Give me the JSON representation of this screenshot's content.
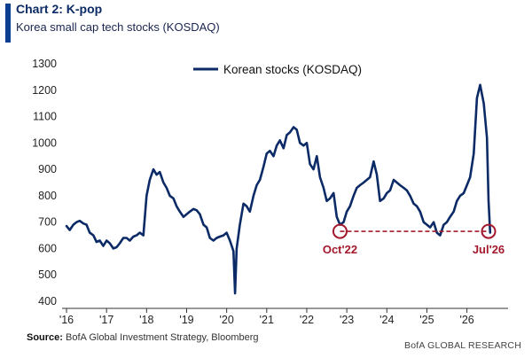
{
  "header": {
    "title": "Chart 2: K-pop",
    "subtitle": "Korea small cap tech stocks (KOSDAQ)"
  },
  "footer": {
    "source_label": "Source:",
    "source_text": "BofA Global Investment Strategy, Bloomberg",
    "brand": "BofA GLOBAL RESEARCH"
  },
  "colors": {
    "line": "#0b2a66",
    "annotation": "#a3182c",
    "accent": "#0b3d91"
  },
  "chart_data": {
    "type": "line",
    "title": "",
    "xlabel": "",
    "ylabel": "",
    "ylim": [
      400,
      1300
    ],
    "yticks": [
      400,
      500,
      600,
      700,
      800,
      900,
      1000,
      1100,
      1200,
      1300
    ],
    "xlim": [
      2016.0,
      2026.85
    ],
    "xticks": [
      2016,
      2017,
      2018,
      2019,
      2020,
      2021,
      2022,
      2023,
      2024,
      2025,
      2026
    ],
    "xtick_labels": [
      "'16",
      "'17",
      "'18",
      "'19",
      "'20",
      "'21",
      "'22",
      "'23",
      "'24",
      "'25",
      "'26"
    ],
    "grid": false,
    "legend": "top-center",
    "series": [
      {
        "name": "Korean stocks (KOSDAQ)",
        "x": [
          2016.0,
          2016.08,
          2016.17,
          2016.25,
          2016.33,
          2016.42,
          2016.5,
          2016.58,
          2016.67,
          2016.75,
          2016.83,
          2016.92,
          2017.0,
          2017.08,
          2017.17,
          2017.25,
          2017.33,
          2017.42,
          2017.5,
          2017.58,
          2017.67,
          2017.75,
          2017.83,
          2017.92,
          2018.0,
          2018.08,
          2018.17,
          2018.25,
          2018.33,
          2018.42,
          2018.5,
          2018.58,
          2018.67,
          2018.75,
          2018.83,
          2018.92,
          2019.0,
          2019.08,
          2019.17,
          2019.25,
          2019.33,
          2019.42,
          2019.5,
          2019.58,
          2019.67,
          2019.75,
          2019.83,
          2019.92,
          2020.0,
          2020.08,
          2020.17,
          2020.21,
          2020.25,
          2020.33,
          2020.42,
          2020.5,
          2020.58,
          2020.67,
          2020.75,
          2020.83,
          2020.92,
          2021.0,
          2021.08,
          2021.17,
          2021.25,
          2021.33,
          2021.42,
          2021.5,
          2021.58,
          2021.67,
          2021.75,
          2021.83,
          2021.92,
          2022.0,
          2022.08,
          2022.17,
          2022.25,
          2022.33,
          2022.42,
          2022.5,
          2022.58,
          2022.67,
          2022.75,
          2022.83,
          2022.92,
          2023.0,
          2023.08,
          2023.17,
          2023.25,
          2023.33,
          2023.42,
          2023.5,
          2023.58,
          2023.67,
          2023.75,
          2023.83,
          2023.92,
          2024.0,
          2024.08,
          2024.17,
          2024.25,
          2024.33,
          2024.42,
          2024.5,
          2024.58,
          2024.67,
          2024.75,
          2024.83,
          2024.92,
          2025.0,
          2025.08,
          2025.17,
          2025.25,
          2025.33,
          2025.42,
          2025.5,
          2025.58,
          2025.67,
          2025.75,
          2025.83,
          2025.92,
          2026.0,
          2026.08,
          2026.17,
          2026.25,
          2026.33,
          2026.42,
          2026.5,
          2026.54,
          2026.58
        ],
        "values": [
          685,
          670,
          690,
          700,
          705,
          695,
          690,
          660,
          650,
          625,
          630,
          610,
          630,
          620,
          600,
          605,
          620,
          640,
          640,
          630,
          645,
          650,
          660,
          650,
          800,
          860,
          900,
          880,
          890,
          850,
          830,
          800,
          790,
          760,
          740,
          720,
          730,
          740,
          750,
          745,
          730,
          690,
          680,
          640,
          630,
          640,
          645,
          650,
          660,
          630,
          590,
          430,
          600,
          690,
          770,
          760,
          740,
          800,
          840,
          860,
          910,
          960,
          970,
          950,
          990,
          1010,
          980,
          1030,
          1040,
          1060,
          1050,
          1000,
          990,
          1000,
          920,
          900,
          950,
          870,
          830,
          780,
          790,
          810,
          720,
          690,
          700,
          740,
          760,
          800,
          830,
          840,
          850,
          860,
          870,
          930,
          880,
          780,
          790,
          810,
          820,
          860,
          850,
          840,
          830,
          820,
          800,
          770,
          760,
          740,
          700,
          690,
          680,
          700,
          660,
          650,
          690,
          700,
          720,
          740,
          780,
          800,
          810,
          840,
          870,
          960,
          1170,
          1220,
          1150,
          1020,
          780,
          660
        ]
      }
    ],
    "annotations": [
      {
        "label": "Oct'22",
        "x": 2022.83,
        "y": 665
      },
      {
        "label": "Jul'26",
        "x": 2026.54,
        "y": 665
      }
    ]
  }
}
